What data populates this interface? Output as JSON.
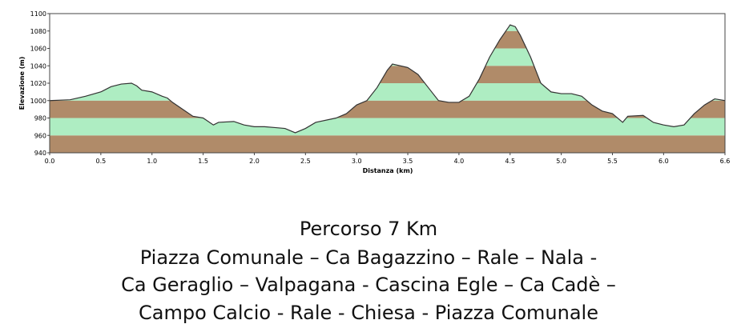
{
  "chart_data": {
    "type": "area",
    "xlabel": "Distanza (km)",
    "ylabel": "Elevazione (m)",
    "x": [
      0.0,
      0.2,
      0.35,
      0.5,
      0.6,
      0.7,
      0.8,
      0.85,
      0.9,
      1.0,
      1.1,
      1.15,
      1.2,
      1.3,
      1.4,
      1.5,
      1.6,
      1.65,
      1.8,
      1.9,
      2.0,
      2.1,
      2.2,
      2.3,
      2.4,
      2.5,
      2.6,
      2.8,
      2.9,
      3.0,
      3.1,
      3.2,
      3.3,
      3.35,
      3.5,
      3.6,
      3.7,
      3.8,
      3.9,
      4.0,
      4.1,
      4.2,
      4.3,
      4.4,
      4.5,
      4.55,
      4.6,
      4.7,
      4.8,
      4.9,
      5.0,
      5.1,
      5.2,
      5.3,
      5.4,
      5.5,
      5.6,
      5.65,
      5.8,
      5.9,
      6.0,
      6.1,
      6.2,
      6.3,
      6.4,
      6.5,
      6.6
    ],
    "values": [
      1000,
      1001,
      1005,
      1010,
      1016,
      1019,
      1020,
      1017,
      1012,
      1010,
      1005,
      1003,
      998,
      990,
      982,
      980,
      972,
      975,
      976,
      972,
      970,
      970,
      969,
      968,
      963,
      968,
      975,
      980,
      985,
      995,
      1000,
      1015,
      1035,
      1042,
      1038,
      1030,
      1015,
      1000,
      998,
      998,
      1005,
      1025,
      1050,
      1070,
      1087,
      1085,
      1075,
      1050,
      1020,
      1010,
      1008,
      1008,
      1005,
      995,
      988,
      985,
      975,
      982,
      983,
      975,
      972,
      970,
      972,
      985,
      995,
      1002,
      1000
    ],
    "band_colors": [
      "#b08b69",
      "#aeedc2"
    ],
    "line_color": "#333333",
    "xlim": [
      0,
      6.6
    ],
    "ylim": [
      940,
      1100
    ],
    "xticks": [
      {
        "value": 0,
        "label": "0.0"
      },
      0.5,
      {
        "value": 1,
        "label": "1.0"
      },
      1.5,
      {
        "value": 2,
        "label": "2.0"
      },
      2.5,
      {
        "value": 3,
        "label": "3.0"
      },
      3.5,
      {
        "value": 4,
        "label": "4.0"
      },
      4.5,
      {
        "value": 5,
        "label": "5.0"
      },
      5.5,
      {
        "value": 6,
        "label": "6.0"
      },
      6.6
    ],
    "yticks": [
      940,
      960,
      980,
      1000,
      1020,
      1040,
      1060,
      1080,
      1100
    ],
    "annotations": [
      "Percorso 7 Km",
      "Piazza Comunale – Ca Bagazzino – Rale – Nala -",
      "Ca Geraglio – Valpagana - Cascina Egle – Ca Cadè –",
      "Campo Calcio - Rale - Chiesa - Piazza Comunale"
    ]
  }
}
